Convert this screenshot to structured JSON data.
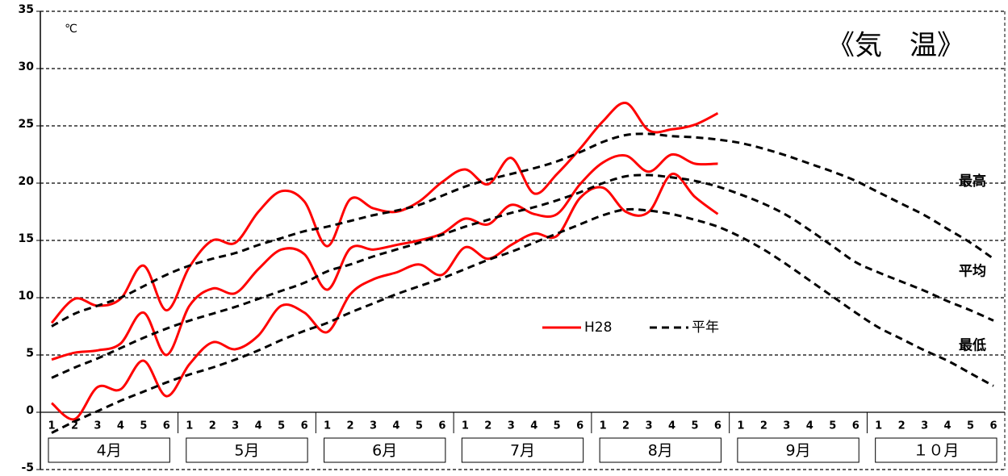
{
  "chart_data": {
    "type": "line",
    "title": "《気　温》",
    "y_unit": "℃",
    "categories": [
      "1",
      "2",
      "3",
      "4",
      "5",
      "6",
      "1",
      "2",
      "3",
      "4",
      "5",
      "6",
      "1",
      "2",
      "3",
      "4",
      "5",
      "6",
      "1",
      "2",
      "3",
      "4",
      "5",
      "6",
      "1",
      "2",
      "3",
      "4",
      "5",
      "6",
      "1",
      "2",
      "3",
      "4",
      "5",
      "6",
      "1",
      "2",
      "3",
      "4",
      "5",
      "6"
    ],
    "months": [
      "4月",
      "5月",
      "6月",
      "7月",
      "8月",
      "9月",
      "１０月"
    ],
    "line_labels": [
      "最高",
      "平均",
      "最低"
    ],
    "ylim": [
      -5,
      35
    ],
    "yticks": [
      -5,
      0,
      5,
      10,
      15,
      20,
      25,
      30,
      35
    ],
    "grid": true,
    "series": [
      {
        "name": "H28",
        "color": "#ff0000",
        "dashed": false,
        "lines": [
          [
            7.8,
            9.9,
            9.3,
            9.9,
            12.8,
            8.9,
            12.7,
            15.0,
            14.8,
            17.5,
            19.3,
            18.4,
            14.5,
            18.6,
            17.8,
            17.5,
            18.4,
            20.1,
            21.2,
            19.9,
            22.2,
            19.1,
            20.8,
            23.0,
            25.4,
            27.0,
            24.6,
            24.7,
            25.1,
            26.1,
            null,
            null,
            null,
            null,
            null,
            null,
            null,
            null,
            null,
            null,
            null,
            null
          ],
          [
            4.6,
            5.2,
            5.4,
            6.0,
            8.7,
            5.0,
            9.3,
            10.8,
            10.4,
            12.5,
            14.2,
            13.8,
            10.7,
            14.3,
            14.2,
            14.6,
            15.0,
            15.6,
            16.9,
            16.4,
            18.1,
            17.3,
            17.3,
            19.9,
            21.8,
            22.4,
            21.0,
            22.5,
            21.7,
            21.7,
            null,
            null,
            null,
            null,
            null,
            null,
            null,
            null,
            null,
            null,
            null,
            null
          ],
          [
            0.8,
            -0.6,
            2.2,
            2.0,
            4.5,
            1.4,
            4.2,
            6.1,
            5.5,
            6.7,
            9.3,
            8.7,
            7.0,
            10.3,
            11.6,
            12.2,
            12.9,
            12.0,
            14.4,
            13.4,
            14.6,
            15.6,
            15.4,
            18.7,
            19.6,
            17.5,
            17.5,
            20.8,
            18.8,
            17.3,
            null,
            null,
            null,
            null,
            null,
            null,
            null,
            null,
            null,
            null,
            null,
            null
          ]
        ]
      },
      {
        "name": "平年",
        "color": "#000000",
        "dashed": true,
        "lines": [
          [
            7.5,
            8.6,
            9.3,
            10.0,
            11.0,
            12.0,
            12.8,
            13.4,
            13.9,
            14.6,
            15.2,
            15.8,
            16.2,
            16.7,
            17.2,
            17.6,
            18.1,
            18.9,
            19.7,
            20.3,
            20.8,
            21.3,
            21.9,
            22.7,
            23.6,
            24.2,
            24.3,
            24.1,
            24.0,
            23.8,
            23.5,
            23.0,
            22.4,
            21.7,
            21.0,
            20.2,
            19.2,
            18.2,
            17.2,
            16.0,
            14.8,
            13.4
          ],
          [
            3.0,
            3.9,
            4.7,
            5.6,
            6.5,
            7.3,
            8.0,
            8.6,
            9.2,
            9.9,
            10.6,
            11.3,
            12.3,
            12.9,
            13.6,
            14.2,
            14.8,
            15.5,
            16.2,
            16.8,
            17.4,
            17.9,
            18.5,
            19.2,
            20.0,
            20.6,
            20.7,
            20.5,
            20.2,
            19.7,
            19.0,
            18.2,
            17.2,
            15.9,
            14.5,
            13.1,
            12.2,
            11.4,
            10.6,
            9.7,
            8.9,
            8.0
          ],
          [
            -1.8,
            -0.8,
            0.1,
            1.0,
            1.8,
            2.6,
            3.3,
            3.9,
            4.6,
            5.4,
            6.3,
            7.1,
            7.8,
            8.7,
            9.5,
            10.3,
            11.0,
            11.7,
            12.5,
            13.3,
            14.0,
            14.8,
            15.6,
            16.4,
            17.2,
            17.7,
            17.6,
            17.3,
            16.8,
            16.2,
            15.3,
            14.2,
            12.9,
            11.5,
            10.1,
            8.7,
            7.4,
            6.4,
            5.4,
            4.5,
            3.4,
            2.3
          ]
        ]
      }
    ]
  }
}
